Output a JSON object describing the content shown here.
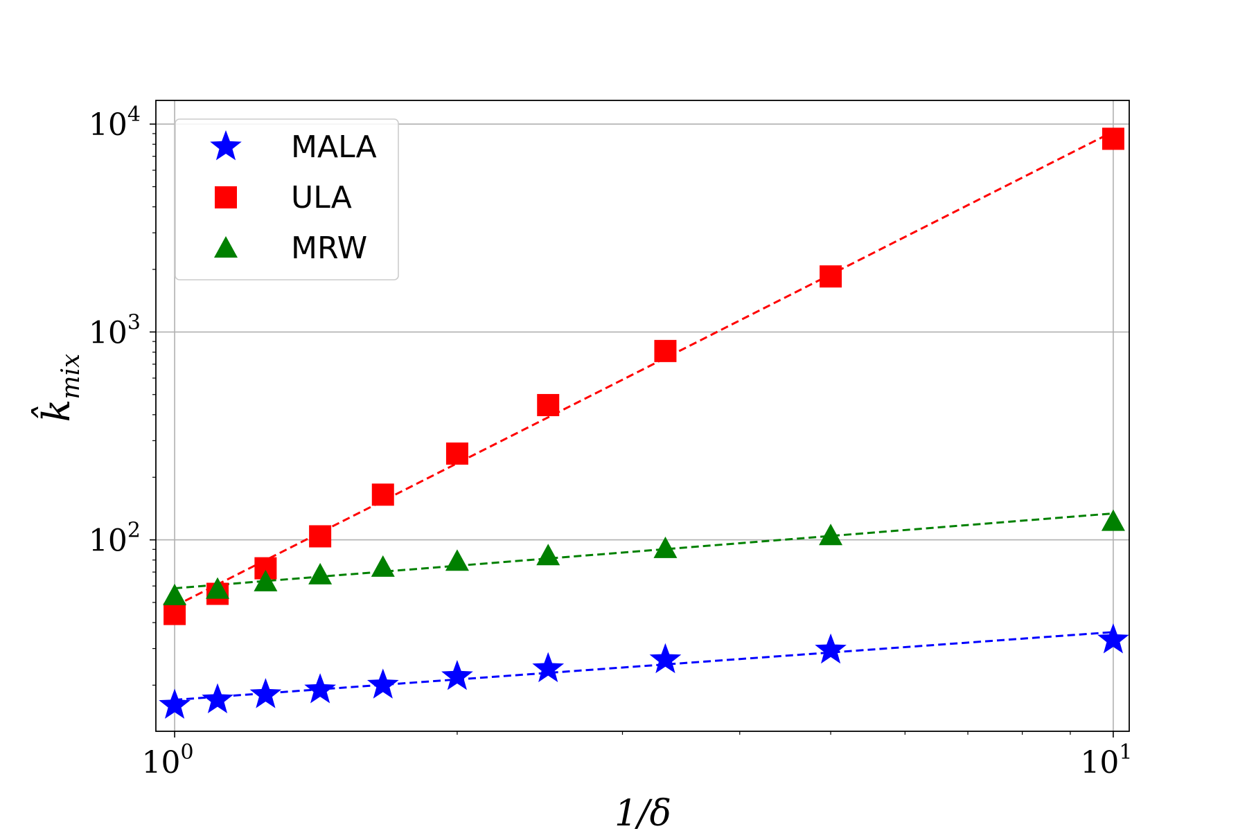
{
  "chart_data": {
    "type": "scatter",
    "xscale": "log",
    "yscale": "log",
    "xlim": [
      0.955,
      10.4
    ],
    "ylim": [
      12,
      13000
    ],
    "xlabel": "1/δ",
    "ylabel": "k̂",
    "ylabel_subscript": "mix",
    "xticks": [
      {
        "value": 1,
        "base": "10",
        "exp": "0"
      },
      {
        "value": 10,
        "base": "10",
        "exp": "1"
      }
    ],
    "yticks": [
      {
        "value": 100,
        "base": "10",
        "exp": "2"
      },
      {
        "value": 1000,
        "base": "10",
        "exp": "3"
      },
      {
        "value": 10000,
        "base": "10",
        "exp": "4"
      }
    ],
    "x_minor_ticks": [
      2,
      3,
      4,
      5,
      6,
      7,
      8,
      9
    ],
    "grid": true,
    "legend": {
      "position": "top-left"
    },
    "x": [
      1.0,
      1.111,
      1.25,
      1.429,
      1.667,
      2.0,
      2.5,
      3.333,
      5.0,
      10.0
    ],
    "series": [
      {
        "name": "MALA",
        "marker": "star",
        "color": "#0000ff",
        "values": [
          16,
          17,
          18,
          19,
          20,
          22,
          24,
          26.5,
          29.5,
          33
        ],
        "fit": {
          "color": "#0000ff",
          "style": "dashed",
          "from": [
            1.0,
            17
          ],
          "to": [
            10.0,
            36
          ]
        }
      },
      {
        "name": "ULA",
        "marker": "square",
        "color": "#ff0000",
        "values": [
          44,
          55,
          73,
          104,
          165,
          260,
          445,
          810,
          1850,
          8500
        ],
        "fit": {
          "color": "#ff0000",
          "style": "dashed",
          "from": [
            1.0,
            48
          ],
          "to": [
            10.0,
            9200
          ]
        }
      },
      {
        "name": "MRW",
        "marker": "triangle",
        "color": "#008000",
        "values": [
          54,
          58,
          63,
          68,
          74,
          79,
          84,
          91,
          105,
          123
        ],
        "fit": {
          "color": "#008000",
          "style": "dashed",
          "from": [
            1.0,
            58.5
          ],
          "to": [
            10.0,
            134
          ]
        }
      }
    ]
  }
}
